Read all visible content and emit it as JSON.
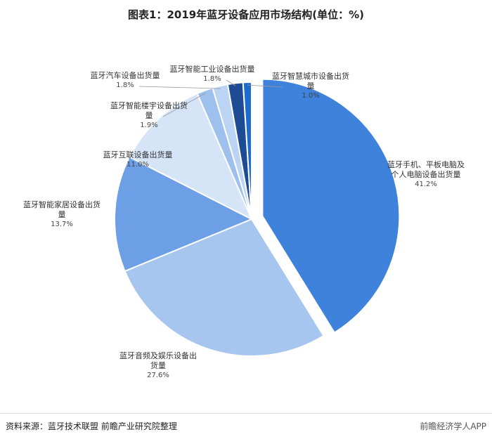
{
  "chart_data": {
    "type": "pie",
    "title": "图表1：2019年蓝牙设备应用市场结构(单位：%)",
    "categories": [
      "蓝牙手机、平板电脑及个人电脑设备出货量",
      "蓝牙音频及娱乐设备出货量",
      "蓝牙智能家居设备出货量",
      "蓝牙互联设备出货量",
      "蓝牙智能楼宇设备出货量",
      "蓝牙汽车设备出货量",
      "蓝牙智能工业设备出货量",
      "蓝牙智慧城市设备出货量"
    ],
    "values": [
      41.2,
      27.6,
      13.7,
      11.0,
      1.9,
      1.8,
      1.8,
      1.0
    ],
    "value_labels": [
      "41.2%",
      "27.6%",
      "13.7%",
      "11.0%",
      "1.9%",
      "1.8%",
      "1.8%",
      "1.0%"
    ],
    "colors": [
      "#3e82dc",
      "#a6c6ef",
      "#6d9fe6",
      "#d5e4f7",
      "#9ec0ec",
      "#bcd4f3",
      "#1d4b94",
      "#1e6bd0"
    ],
    "exploded": [
      0
    ],
    "source": "资料来源：蓝牙技术联盟 前瞻产业研究院整理",
    "watermark": "前瞻经济学人APP"
  }
}
